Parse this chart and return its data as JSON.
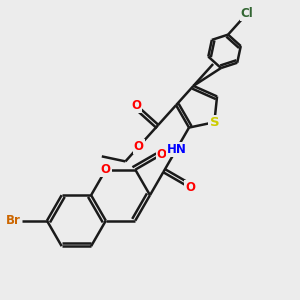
{
  "bg_color": "#ececec",
  "bond_color": "#1a1a1a",
  "bond_width": 1.8,
  "atom_colors": {
    "O": "#ff0000",
    "N": "#0000ff",
    "S": "#cccc00",
    "Br": "#cc6600",
    "Cl": "#336633",
    "C": "#1a1a1a",
    "H": "#1a1a1a"
  },
  "font_size": 8.5
}
